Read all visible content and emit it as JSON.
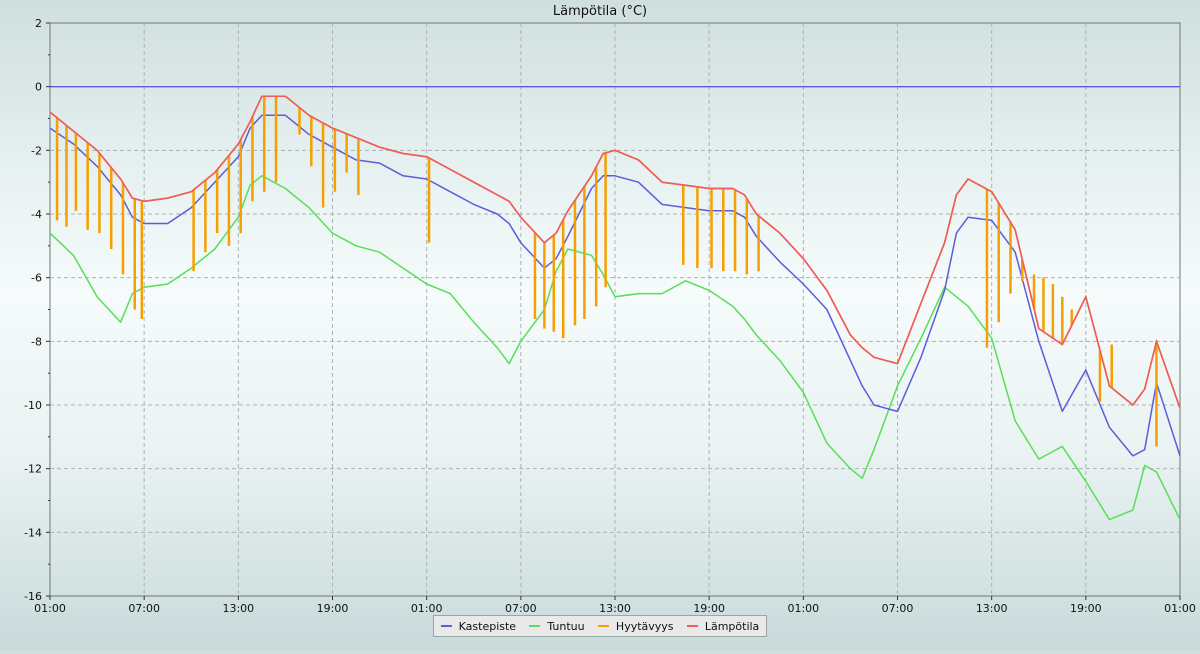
{
  "chart_data": {
    "type": "line",
    "title": "Lämpötila (°C)",
    "xlabel": "",
    "ylabel": "",
    "ylim": [
      -16,
      2
    ],
    "yticks": [
      2,
      0,
      -2,
      -4,
      -6,
      -8,
      -10,
      -12,
      -14,
      -16
    ],
    "ytick_labels": [
      "2",
      "0",
      "-2",
      "-4",
      "-6",
      "-8",
      "-10",
      "-12",
      "-14",
      "-16"
    ],
    "xlim_hours": [
      0,
      48
    ],
    "xticks_hours": [
      0,
      4,
      8,
      12,
      16,
      20,
      24,
      28,
      32,
      36,
      40,
      44,
      48
    ],
    "xtick_labels": [
      "01:00",
      "07:00",
      "13:00",
      "19:00",
      "01:00",
      "07:00",
      "13:00",
      "19:00",
      "01:00",
      "07:00",
      "13:00",
      "19:00",
      "01:00"
    ],
    "grid": true,
    "legend_position": "bottom-center",
    "x_hours": [
      0,
      1,
      2,
      3,
      3.5,
      4,
      5,
      6,
      7,
      8,
      8.5,
      9,
      10,
      11,
      12,
      13,
      14,
      15,
      16,
      17,
      18,
      19,
      19.5,
      20,
      21,
      21.5,
      22,
      23,
      23.5,
      24,
      25,
      26,
      27,
      28,
      29,
      29.5,
      30,
      31,
      32,
      33,
      34,
      34.5,
      35,
      36,
      37,
      38,
      38.5,
      39,
      40,
      41,
      42,
      43,
      44,
      45,
      46,
      46.5,
      47,
      48
    ],
    "series": [
      {
        "name": "Kastepiste",
        "color": "#5c5cdc",
        "values": [
          -1.3,
          -1.8,
          -2.5,
          -3.4,
          -4.1,
          -4.3,
          -4.3,
          -3.8,
          -3.0,
          -2.2,
          -1.3,
          -0.9,
          -0.9,
          -1.5,
          -1.9,
          -2.3,
          -2.4,
          -2.8,
          -2.9,
          -3.3,
          -3.7,
          -4.0,
          -4.3,
          -4.9,
          -5.7,
          -5.4,
          -4.7,
          -3.2,
          -2.8,
          -2.8,
          -3.0,
          -3.7,
          -3.8,
          -3.9,
          -3.9,
          -4.1,
          -4.7,
          -5.5,
          -6.2,
          -7.0,
          -8.6,
          -9.4,
          -10.0,
          -10.2,
          -8.5,
          -6.4,
          -4.6,
          -4.1,
          -4.2,
          -5.2,
          -8.0,
          -10.2,
          -8.9,
          -10.7,
          -11.6,
          -11.4,
          -9.3,
          -11.6
        ]
      },
      {
        "name": "Tuntuu",
        "color": "#55e055",
        "values": [
          -4.6,
          -5.3,
          -6.6,
          -7.4,
          -6.5,
          -6.3,
          -6.2,
          -5.7,
          -5.1,
          -4.1,
          -3.1,
          -2.8,
          -3.2,
          -3.8,
          -4.6,
          -5.0,
          -5.2,
          -5.7,
          -6.2,
          -6.5,
          -7.4,
          -8.2,
          -8.7,
          -8.0,
          -7.0,
          -5.8,
          -5.1,
          -5.3,
          -5.9,
          -6.6,
          -6.5,
          -6.5,
          -6.1,
          -6.4,
          -6.9,
          -7.3,
          -7.8,
          -8.6,
          -9.6,
          -11.2,
          -12.0,
          -12.3,
          -11.4,
          -9.4,
          -7.9,
          -6.3,
          -6.6,
          -6.9,
          -7.9,
          -10.5,
          -11.7,
          -11.3,
          -12.4,
          -13.6,
          -13.3,
          -11.9,
          -12.1,
          -13.6
        ]
      },
      {
        "name": "Hyytävyys",
        "color": "#f5a000",
        "values": [
          -0.8,
          -1.4,
          -2.0,
          -2.9,
          -3.5,
          -3.6,
          -3.5,
          -3.3,
          -2.7,
          -1.8,
          -1.1,
          -0.3,
          -0.3,
          -0.9,
          -1.3,
          -1.6,
          -1.9,
          -2.1,
          -2.2,
          -2.6,
          -3.0,
          -3.4,
          -3.6,
          -4.1,
          -4.9,
          -4.6,
          -3.9,
          -2.8,
          -2.1,
          -2.0,
          -2.3,
          -3.0,
          -3.1,
          -3.2,
          -3.2,
          -3.4,
          -4.0,
          -4.6,
          -5.4,
          -6.4,
          -7.8,
          -8.2,
          -8.5,
          -8.7,
          -6.8,
          -4.9,
          -3.4,
          -2.9,
          -3.3,
          -4.5,
          -7.6,
          -8.1,
          -6.6,
          -9.4,
          -10.0,
          -9.5,
          -8.0,
          -10.1
        ]
      },
      {
        "name": "Lämpötila",
        "color": "#ee5c5c",
        "values": [
          -0.8,
          -1.4,
          -2.0,
          -2.9,
          -3.5,
          -3.6,
          -3.5,
          -3.3,
          -2.7,
          -1.8,
          -1.1,
          -0.3,
          -0.3,
          -0.9,
          -1.3,
          -1.6,
          -1.9,
          -2.1,
          -2.2,
          -2.6,
          -3.0,
          -3.4,
          -3.6,
          -4.1,
          -4.9,
          -4.6,
          -3.9,
          -2.8,
          -2.1,
          -2.0,
          -2.3,
          -3.0,
          -3.1,
          -3.2,
          -3.2,
          -3.4,
          -4.0,
          -4.6,
          -5.4,
          -6.4,
          -7.8,
          -8.2,
          -8.5,
          -8.7,
          -6.8,
          -4.9,
          -3.4,
          -2.9,
          -3.3,
          -4.5,
          -7.6,
          -8.1,
          -6.6,
          -9.4,
          -10.0,
          -9.5,
          -8.0,
          -10.1
        ]
      }
    ],
    "baseline": {
      "value": 0,
      "color": "#5c5cdc"
    },
    "hyytavyys_dips": [
      {
        "x": 0.3,
        "to": -4.2
      },
      {
        "x": 0.7,
        "to": -4.4
      },
      {
        "x": 1.1,
        "to": -3.9
      },
      {
        "x": 1.6,
        "to": -4.5
      },
      {
        "x": 2.1,
        "to": -4.6
      },
      {
        "x": 2.6,
        "to": -5.1
      },
      {
        "x": 3.1,
        "to": -5.9
      },
      {
        "x": 3.6,
        "to": -7.0
      },
      {
        "x": 3.9,
        "to": -7.3
      },
      {
        "x": 6.1,
        "to": -5.8
      },
      {
        "x": 6.6,
        "to": -5.2
      },
      {
        "x": 7.1,
        "to": -4.6
      },
      {
        "x": 7.6,
        "to": -5.0
      },
      {
        "x": 8.1,
        "to": -4.6
      },
      {
        "x": 8.6,
        "to": -3.6
      },
      {
        "x": 9.1,
        "to": -3.3
      },
      {
        "x": 9.6,
        "to": -3.0
      },
      {
        "x": 10.6,
        "to": -1.5
      },
      {
        "x": 11.1,
        "to": -2.5
      },
      {
        "x": 11.6,
        "to": -3.8
      },
      {
        "x": 12.1,
        "to": -3.3
      },
      {
        "x": 12.6,
        "to": -2.7
      },
      {
        "x": 13.1,
        "to": -3.4
      },
      {
        "x": 16.1,
        "to": -4.9
      },
      {
        "x": 20.6,
        "to": -7.3
      },
      {
        "x": 21.0,
        "to": -7.6
      },
      {
        "x": 21.4,
        "to": -7.7
      },
      {
        "x": 21.8,
        "to": -7.9
      },
      {
        "x": 22.3,
        "to": -7.5
      },
      {
        "x": 22.7,
        "to": -7.3
      },
      {
        "x": 23.2,
        "to": -6.9
      },
      {
        "x": 23.6,
        "to": -6.3
      },
      {
        "x": 26.9,
        "to": -5.6
      },
      {
        "x": 27.5,
        "to": -5.7
      },
      {
        "x": 28.1,
        "to": -5.7
      },
      {
        "x": 28.6,
        "to": -5.8
      },
      {
        "x": 29.1,
        "to": -5.8
      },
      {
        "x": 29.6,
        "to": -5.9
      },
      {
        "x": 30.1,
        "to": -5.8
      },
      {
        "x": 39.8,
        "to": -8.2
      },
      {
        "x": 40.3,
        "to": -7.4
      },
      {
        "x": 40.8,
        "to": -6.5
      },
      {
        "x": 41.3,
        "to": -6.1
      },
      {
        "x": 41.8,
        "to": -5.9
      },
      {
        "x": 42.2,
        "to": -6.0
      },
      {
        "x": 42.6,
        "to": -6.2
      },
      {
        "x": 43.0,
        "to": -6.6
      },
      {
        "x": 43.4,
        "to": -7.0
      },
      {
        "x": 44.6,
        "to": -9.9
      },
      {
        "x": 45.1,
        "to": -8.1
      },
      {
        "x": 47.0,
        "to": -11.3
      }
    ]
  }
}
